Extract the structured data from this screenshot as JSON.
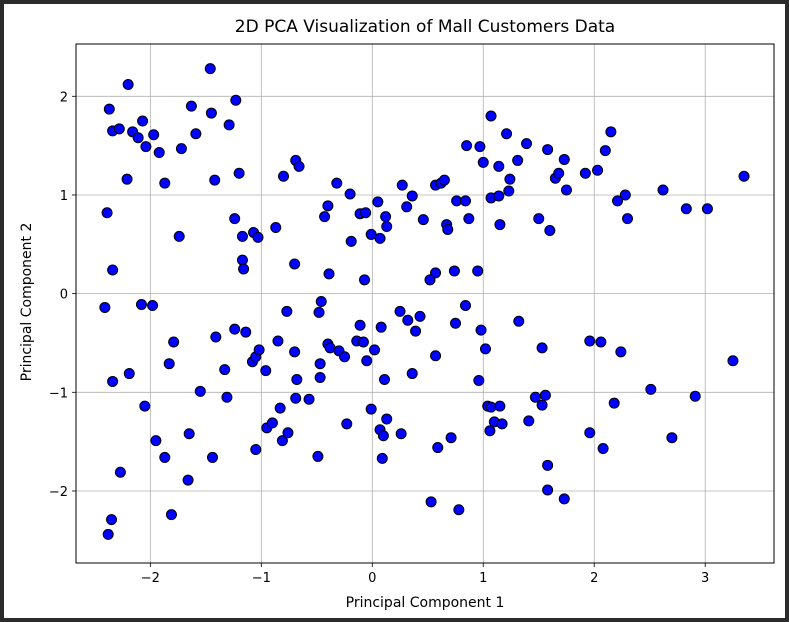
{
  "colors": {
    "marker_fill": "#0000ff",
    "marker_edge": "#000000"
  },
  "chart_data": {
    "type": "scatter",
    "title": "2D PCA Visualization of Mall Customers Data",
    "xlabel": "Principal Component 1",
    "ylabel": "Principal Component 2",
    "xlim": [
      -2.67,
      3.62
    ],
    "ylim": [
      -2.73,
      2.53
    ],
    "xticks": [
      -2,
      -1,
      0,
      1,
      2,
      3
    ],
    "yticks": [
      -2,
      -1,
      0,
      1,
      2
    ],
    "xtick_labels": [
      "−2",
      "−1",
      "0",
      "1",
      "2",
      "3"
    ],
    "ytick_labels": [
      "−2",
      "−1",
      "0",
      "1",
      "2"
    ],
    "grid": true,
    "points": [
      [
        -2.39,
        0.82
      ],
      [
        -2.41,
        -0.14
      ],
      [
        -2.34,
        0.24
      ],
      [
        -2.37,
        1.87
      ],
      [
        -2.34,
        1.65
      ],
      [
        -2.28,
        1.67
      ],
      [
        -2.2,
        2.12
      ],
      [
        -2.21,
        1.16
      ],
      [
        -2.16,
        1.64
      ],
      [
        -2.11,
        1.58
      ],
      [
        -2.07,
        1.75
      ],
      [
        -2.04,
        1.49
      ],
      [
        -1.97,
        1.61
      ],
      [
        -1.92,
        1.43
      ],
      [
        -1.87,
        1.12
      ],
      [
        -1.74,
        0.58
      ],
      [
        -1.72,
        1.47
      ],
      [
        -1.63,
        1.9
      ],
      [
        -1.59,
        1.62
      ],
      [
        -1.46,
        2.28
      ],
      [
        -1.45,
        1.83
      ],
      [
        -1.42,
        1.15
      ],
      [
        -1.29,
        1.71
      ],
      [
        -1.23,
        1.96
      ],
      [
        -1.2,
        1.22
      ],
      [
        -1.24,
        0.76
      ],
      [
        -1.17,
        0.58
      ],
      [
        -1.17,
        0.34
      ],
      [
        -1.16,
        0.25
      ],
      [
        -1.07,
        0.62
      ],
      [
        -1.03,
        0.57
      ],
      [
        -0.87,
        0.67
      ],
      [
        -0.8,
        1.19
      ],
      [
        -0.69,
        1.35
      ],
      [
        -0.66,
        1.29
      ],
      [
        -0.7,
        0.3
      ],
      [
        -0.43,
        0.78
      ],
      [
        -0.4,
        0.89
      ],
      [
        -0.39,
        0.2
      ],
      [
        -0.32,
        1.12
      ],
      [
        -0.2,
        1.01
      ],
      [
        -0.19,
        0.53
      ],
      [
        -0.11,
        0.81
      ],
      [
        -0.06,
        0.82
      ],
      [
        -0.07,
        0.14
      ],
      [
        -0.01,
        0.6
      ],
      [
        0.05,
        0.93
      ],
      [
        0.07,
        0.56
      ],
      [
        0.12,
        0.78
      ],
      [
        0.13,
        0.68
      ],
      [
        0.27,
        1.1
      ],
      [
        0.31,
        0.88
      ],
      [
        0.36,
        0.99
      ],
      [
        0.46,
        0.75
      ],
      [
        0.57,
        1.1
      ],
      [
        0.62,
        1.12
      ],
      [
        0.65,
        1.15
      ],
      [
        0.67,
        0.7
      ],
      [
        0.68,
        0.65
      ],
      [
        0.76,
        0.94
      ],
      [
        0.84,
        0.94
      ],
      [
        0.85,
        1.5
      ],
      [
        0.87,
        0.76
      ],
      [
        0.74,
        0.23
      ],
      [
        0.57,
        0.21
      ],
      [
        0.52,
        0.14
      ],
      [
        0.95,
        0.23
      ],
      [
        0.97,
        1.49
      ],
      [
        1.0,
        1.33
      ],
      [
        1.07,
        1.8
      ],
      [
        1.07,
        0.97
      ],
      [
        1.14,
        1.29
      ],
      [
        1.14,
        0.99
      ],
      [
        1.15,
        0.7
      ],
      [
        1.21,
        1.62
      ],
      [
        1.24,
        1.16
      ],
      [
        1.23,
        1.04
      ],
      [
        1.31,
        1.35
      ],
      [
        1.39,
        1.52
      ],
      [
        1.5,
        0.76
      ],
      [
        1.58,
        1.46
      ],
      [
        1.6,
        0.64
      ],
      [
        1.65,
        1.17
      ],
      [
        1.68,
        1.22
      ],
      [
        1.73,
        1.36
      ],
      [
        1.75,
        1.05
      ],
      [
        1.92,
        1.22
      ],
      [
        2.03,
        1.25
      ],
      [
        2.1,
        1.45
      ],
      [
        2.15,
        1.64
      ],
      [
        2.21,
        0.94
      ],
      [
        2.28,
        1.0
      ],
      [
        2.3,
        0.76
      ],
      [
        2.62,
        1.05
      ],
      [
        2.83,
        0.86
      ],
      [
        3.02,
        0.86
      ],
      [
        3.35,
        1.19
      ],
      [
        -2.08,
        -0.11
      ],
      [
        -1.98,
        -0.12
      ],
      [
        -1.79,
        -0.49
      ],
      [
        -1.83,
        -0.71
      ],
      [
        -1.65,
        -1.42
      ],
      [
        -1.87,
        -1.66
      ],
      [
        -1.95,
        -1.49
      ],
      [
        -2.05,
        -1.14
      ],
      [
        -2.19,
        -0.81
      ],
      [
        -2.34,
        -0.89
      ],
      [
        -2.27,
        -1.81
      ],
      [
        -2.35,
        -2.29
      ],
      [
        -2.38,
        -2.44
      ],
      [
        -1.81,
        -2.24
      ],
      [
        -1.66,
        -1.89
      ],
      [
        -1.55,
        -0.99
      ],
      [
        -1.44,
        -1.66
      ],
      [
        -1.41,
        -0.44
      ],
      [
        -1.33,
        -0.77
      ],
      [
        -1.31,
        -1.05
      ],
      [
        -1.24,
        -0.36
      ],
      [
        -1.14,
        -0.39
      ],
      [
        -1.08,
        -0.69
      ],
      [
        -1.05,
        -0.64
      ],
      [
        -1.02,
        -0.57
      ],
      [
        -1.05,
        -1.58
      ],
      [
        -0.96,
        -0.78
      ],
      [
        -0.95,
        -1.36
      ],
      [
        -0.9,
        -1.31
      ],
      [
        -0.83,
        -1.16
      ],
      [
        -0.85,
        -0.48
      ],
      [
        -0.81,
        -1.49
      ],
      [
        -0.76,
        -1.41
      ],
      [
        -0.77,
        -0.18
      ],
      [
        -0.7,
        -0.59
      ],
      [
        -0.68,
        -0.87
      ],
      [
        -0.69,
        -1.06
      ],
      [
        -0.57,
        -1.07
      ],
      [
        -0.49,
        -1.65
      ],
      [
        -0.47,
        -0.85
      ],
      [
        -0.47,
        -0.71
      ],
      [
        -0.48,
        -0.19
      ],
      [
        -0.46,
        -0.08
      ],
      [
        -0.4,
        -0.51
      ],
      [
        -0.38,
        -0.55
      ],
      [
        -0.3,
        -0.58
      ],
      [
        -0.25,
        -0.64
      ],
      [
        -0.23,
        -1.32
      ],
      [
        -0.14,
        -0.48
      ],
      [
        -0.11,
        -0.32
      ],
      [
        -0.08,
        -0.49
      ],
      [
        -0.05,
        -0.68
      ],
      [
        -0.01,
        -1.17
      ],
      [
        0.02,
        -0.57
      ],
      [
        0.08,
        -0.34
      ],
      [
        0.07,
        -1.38
      ],
      [
        0.09,
        -1.67
      ],
      [
        0.1,
        -1.44
      ],
      [
        0.11,
        -0.87
      ],
      [
        0.13,
        -1.27
      ],
      [
        0.26,
        -1.42
      ],
      [
        0.25,
        -0.18
      ],
      [
        0.32,
        -0.27
      ],
      [
        0.36,
        -0.81
      ],
      [
        0.39,
        -0.38
      ],
      [
        0.43,
        -0.23
      ],
      [
        0.53,
        -2.11
      ],
      [
        0.57,
        -0.63
      ],
      [
        0.59,
        -1.56
      ],
      [
        0.71,
        -1.46
      ],
      [
        0.75,
        -0.3
      ],
      [
        0.78,
        -2.19
      ],
      [
        0.84,
        -0.12
      ],
      [
        0.96,
        -0.88
      ],
      [
        0.98,
        -0.37
      ],
      [
        1.02,
        -0.56
      ],
      [
        1.04,
        -1.14
      ],
      [
        1.06,
        -1.39
      ],
      [
        1.07,
        -1.15
      ],
      [
        1.1,
        -1.3
      ],
      [
        1.15,
        -1.14
      ],
      [
        1.17,
        -1.32
      ],
      [
        1.32,
        -0.28
      ],
      [
        1.41,
        -1.29
      ],
      [
        1.47,
        -1.05
      ],
      [
        1.53,
        -0.55
      ],
      [
        1.53,
        -1.13
      ],
      [
        1.56,
        -1.03
      ],
      [
        1.58,
        -1.74
      ],
      [
        1.58,
        -1.99
      ],
      [
        1.73,
        -2.08
      ],
      [
        1.96,
        -0.48
      ],
      [
        1.96,
        -1.41
      ],
      [
        2.06,
        -0.49
      ],
      [
        2.08,
        -1.57
      ],
      [
        2.18,
        -1.11
      ],
      [
        2.24,
        -0.59
      ],
      [
        2.51,
        -0.97
      ],
      [
        2.7,
        -1.46
      ],
      [
        2.91,
        -1.04
      ],
      [
        3.25,
        -0.68
      ]
    ]
  }
}
